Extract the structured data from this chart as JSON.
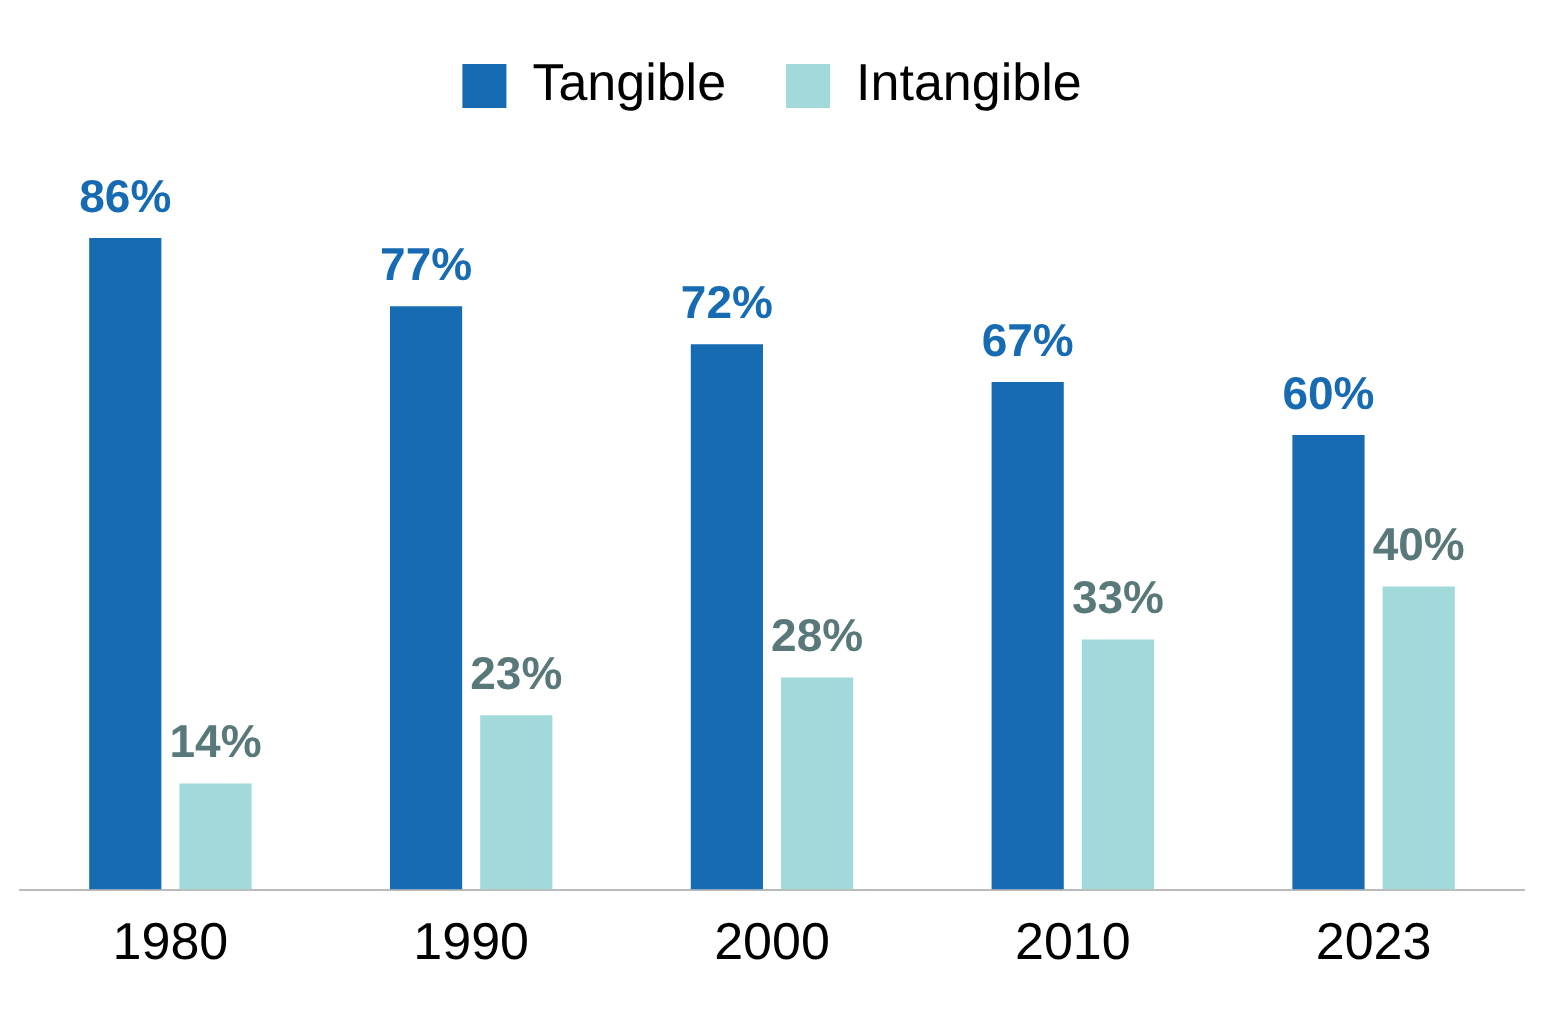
{
  "chart_data": {
    "type": "bar",
    "categories": [
      "1980",
      "1990",
      "2000",
      "2010",
      "2023"
    ],
    "series": [
      {
        "name": "Tangible",
        "color": "#176bb3",
        "values": [
          86,
          77,
          72,
          67,
          60
        ],
        "value_labels": [
          "86%",
          "77%",
          "72%",
          "67%",
          "60%"
        ]
      },
      {
        "name": "Intangible",
        "color": "#a2dadc",
        "values": [
          14,
          23,
          28,
          33,
          40
        ],
        "value_labels": [
          "14%",
          "23%",
          "28%",
          "33%",
          "40%"
        ]
      }
    ],
    "legend": "top",
    "grid": false
  }
}
